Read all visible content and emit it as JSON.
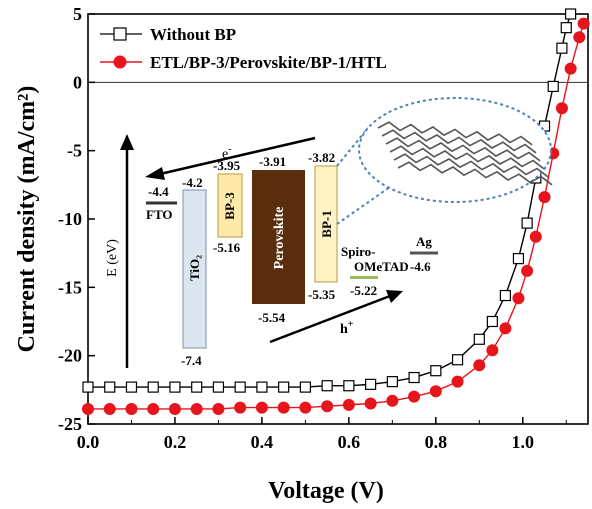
{
  "chart_data": {
    "type": "scatter",
    "xlabel": "Voltage (V)",
    "ylabel": "Current density (mA/cm²)",
    "xlim": [
      0.0,
      1.15
    ],
    "ylim": [
      -25,
      5
    ],
    "x_ticks": [
      "0.0",
      "0.2",
      "0.4",
      "0.6",
      "0.8",
      "1.0"
    ],
    "y_ticks": [
      "5",
      "0",
      "-5",
      "-10",
      "-15",
      "-20",
      "-25"
    ],
    "legend_position": "top-left",
    "zero_line": true,
    "series": [
      {
        "name": "Without BP",
        "marker": "open-square",
        "color": "#000000",
        "x": [
          0.0,
          0.05,
          0.1,
          0.15,
          0.2,
          0.25,
          0.3,
          0.35,
          0.4,
          0.45,
          0.5,
          0.55,
          0.6,
          0.65,
          0.7,
          0.75,
          0.8,
          0.85,
          0.9,
          0.93,
          0.96,
          0.99,
          1.01,
          1.03,
          1.05,
          1.07,
          1.09,
          1.1,
          1.11
        ],
        "y": [
          -22.3,
          -22.3,
          -22.3,
          -22.3,
          -22.3,
          -22.3,
          -22.3,
          -22.3,
          -22.3,
          -22.3,
          -22.3,
          -22.2,
          -22.2,
          -22.1,
          -21.9,
          -21.6,
          -21.1,
          -20.3,
          -18.8,
          -17.5,
          -15.6,
          -12.9,
          -10.3,
          -7.0,
          -3.2,
          -0.3,
          2.5,
          4.0,
          5.0
        ]
      },
      {
        "name": "ETL/BP-3/Perovskite/BP-1/HTL",
        "marker": "filled-circle",
        "color": "#e8141c",
        "x": [
          0.0,
          0.05,
          0.1,
          0.15,
          0.2,
          0.25,
          0.3,
          0.35,
          0.4,
          0.45,
          0.5,
          0.55,
          0.6,
          0.65,
          0.7,
          0.75,
          0.8,
          0.85,
          0.9,
          0.93,
          0.96,
          0.99,
          1.01,
          1.03,
          1.05,
          1.07,
          1.09,
          1.11,
          1.13,
          1.14
        ],
        "y": [
          -23.9,
          -23.9,
          -23.9,
          -23.9,
          -23.9,
          -23.9,
          -23.9,
          -23.8,
          -23.8,
          -23.8,
          -23.8,
          -23.7,
          -23.6,
          -23.5,
          -23.3,
          -23.0,
          -22.6,
          -21.9,
          -20.7,
          -19.6,
          -18.0,
          -15.8,
          -13.8,
          -11.3,
          -8.4,
          -5.2,
          -1.9,
          1.0,
          3.3,
          4.3
        ]
      }
    ],
    "inset": {
      "axis_label": "E (eV)",
      "e_minus": "e",
      "e_minus_sup": "-",
      "h_plus": "h",
      "h_plus_sup": "+",
      "layers": [
        {
          "name": "FTO",
          "top": "-4.4",
          "fill": "#333333"
        },
        {
          "name": "TiO₂",
          "top": "-4.2",
          "bottom": "-7.4",
          "fill": "#dce6f1"
        },
        {
          "name": "BP-3",
          "top": "-3.95",
          "bottom": "-5.16",
          "fill": "#fde9a9"
        },
        {
          "name": "Perovskite",
          "top": "-3.91",
          "bottom": "-5.54",
          "fill": "#5a2e0d"
        },
        {
          "name": "BP-1",
          "top": "-3.82",
          "bottom": "-5.35",
          "fill": "#fff2c4"
        },
        {
          "name": "Spiro-",
          "name2": "OMeTAD",
          "top": "-5.22",
          "fill": "#9bbb59"
        },
        {
          "name": "Ag",
          "top": "-4.6",
          "fill": "#555555"
        }
      ]
    }
  }
}
